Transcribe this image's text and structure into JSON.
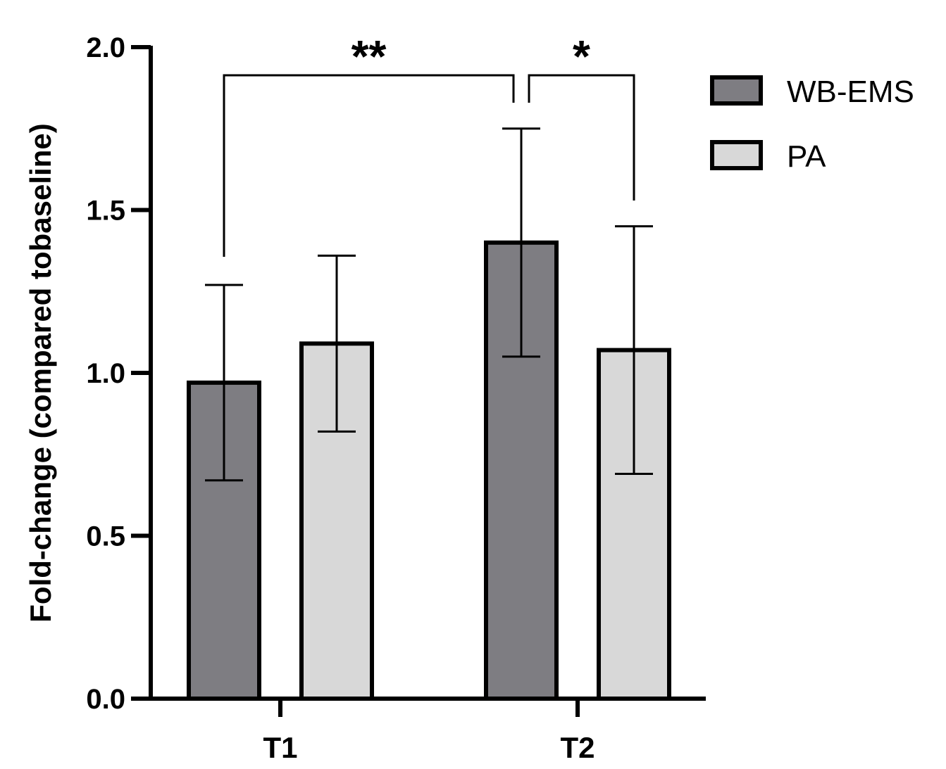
{
  "chart_data": {
    "type": "bar",
    "title": "",
    "xlabel": "",
    "ylabel": "Fold-change (compared tobaseline)",
    "ylim": [
      0,
      2.0
    ],
    "yticks": [
      0.0,
      0.5,
      1.0,
      1.5,
      2.0
    ],
    "ytick_labels": [
      "0.0",
      "0.5",
      "1.0",
      "1.5",
      "2.0"
    ],
    "categories": [
      "T1",
      "T2"
    ],
    "series": [
      {
        "name": "WB-EMS",
        "color": "#7e7d82",
        "values": [
          0.97,
          1.4
        ],
        "error": [
          0.3,
          0.35
        ]
      },
      {
        "name": "PA",
        "color": "#d8d8d8",
        "values": [
          1.09,
          1.07
        ],
        "error": [
          0.27,
          0.38
        ]
      }
    ],
    "legend": {
      "placement": "top-right",
      "entries": [
        "WB-EMS",
        "PA"
      ]
    },
    "significance": [
      {
        "from": "T1 WB-EMS",
        "to": "T2 WB-EMS",
        "label": "**"
      },
      {
        "from": "T2 WB-EMS",
        "to": "T2 PA",
        "label": "*"
      }
    ]
  }
}
